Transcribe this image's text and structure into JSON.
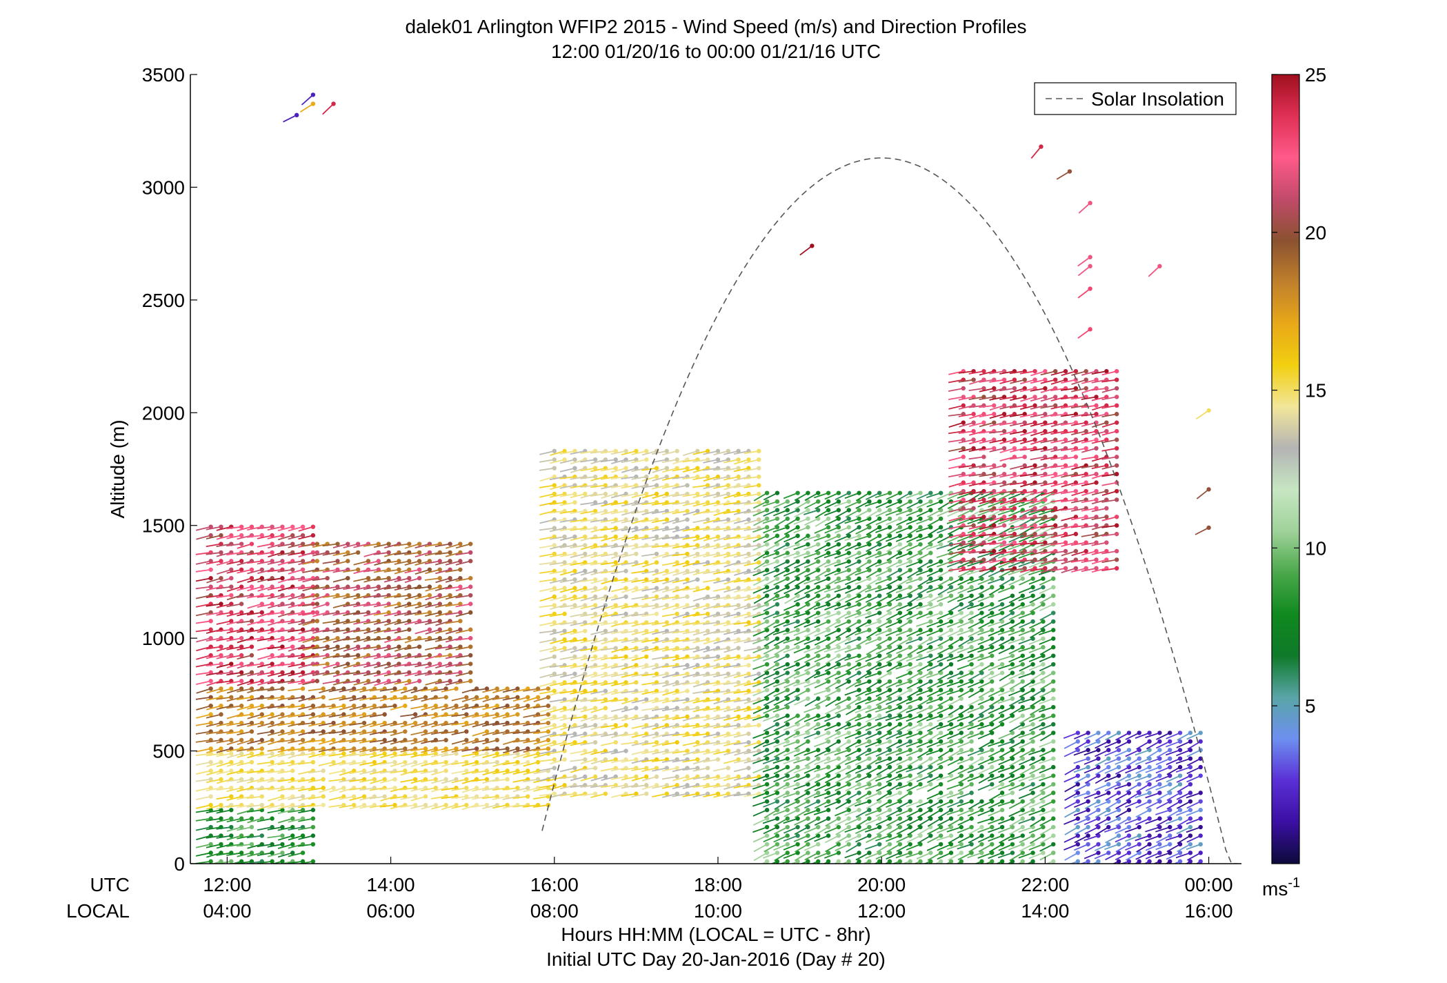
{
  "chart_data": {
    "type": "scatter",
    "title": "dalek01 Arlington WFIP2 2015 - Wind Speed (m/s) and Direction Profiles",
    "subtitle": "12:00 01/20/16 to 00:00 01/21/16  UTC",
    "ylabel": "Altitude (m)",
    "ylim": [
      0,
      3500
    ],
    "y_ticks": [
      "0",
      "500",
      "1000",
      "1500",
      "2000",
      "2500",
      "3000",
      "3500"
    ],
    "xlim_hours": [
      11.55,
      24.4
    ],
    "x_ticks_utc": [
      "12:00",
      "14:00",
      "16:00",
      "18:00",
      "20:00",
      "22:00",
      "00:00"
    ],
    "x_ticks_local": [
      "04:00",
      "06:00",
      "08:00",
      "10:00",
      "12:00",
      "14:00",
      "16:00"
    ],
    "x_row_label_utc": "UTC",
    "x_row_label_local": "LOCAL",
    "xlabel": "Hours HH:MM  (LOCAL = UTC - 8hr)",
    "xlabel2": "Initial UTC Day 20-Jan-2016 (Day # 20)",
    "legend_entry": "Solar Insolation",
    "legend_position": "top-right",
    "colorbar": {
      "range": [
        0,
        25
      ],
      "ticks": [
        "5",
        "10",
        "15",
        "20",
        "25"
      ],
      "unit": "ms",
      "unit_exp": "-1",
      "stops": [
        "#0c0a3a",
        "#3b0fa3",
        "#5a2fd6",
        "#6d8ff0",
        "#5aa5a8",
        "#0f7a2a",
        "#10891f",
        "#4aa84a",
        "#9fd29a",
        "#c6e6c2",
        "#b4b4b4",
        "#f2e69a",
        "#f2cf10",
        "#e8a818",
        "#c0802c",
        "#8a5230",
        "#c14a6a",
        "#ff5a8a",
        "#e03055",
        "#a0101e"
      ]
    },
    "solar_insolation_curve": {
      "start_hour": 15.85,
      "peak_hour": 20.0,
      "end_hour": 24.35,
      "peak_altitude_m": 3130
    },
    "barbs": {
      "summary": "Wind speed (color) and direction (line) profiles from ~0 to ~2200 m with sparse upper points to ~3400 m",
      "regimes": [
        {
          "t": [
            11.8,
            13.1
          ],
          "z": [
            0,
            250
          ],
          "speed": [
            6,
            10
          ]
        },
        {
          "t": [
            11.8,
            16.0
          ],
          "z": [
            250,
            500
          ],
          "speed": [
            14,
            16
          ]
        },
        {
          "t": [
            11.8,
            16.0
          ],
          "z": [
            500,
            800
          ],
          "speed": [
            17,
            20
          ]
        },
        {
          "t": [
            11.8,
            13.1
          ],
          "z": [
            800,
            1500
          ],
          "speed": [
            20,
            25
          ]
        },
        {
          "t": [
            13.1,
            15.0
          ],
          "z": [
            800,
            1450
          ],
          "speed": [
            18,
            22
          ]
        },
        {
          "t": [
            16.0,
            18.6
          ],
          "z": [
            300,
            1850
          ],
          "speed": [
            13,
            16
          ]
        },
        {
          "t": [
            18.6,
            22.2
          ],
          "z": [
            0,
            1650
          ],
          "speed": [
            6,
            11
          ]
        },
        {
          "t": [
            21.0,
            22.9
          ],
          "z": [
            1300,
            2200
          ],
          "speed": [
            20,
            25
          ]
        },
        {
          "t": [
            22.4,
            24.0
          ],
          "z": [
            0,
            600
          ],
          "speed": [
            1,
            5
          ]
        }
      ],
      "upper_points": [
        {
          "t": 12.85,
          "z": 3320,
          "speed": 2
        },
        {
          "t": 13.05,
          "z": 3410,
          "speed": 2
        },
        {
          "t": 13.05,
          "z": 3370,
          "speed": 17
        },
        {
          "t": 13.3,
          "z": 3370,
          "speed": 24
        },
        {
          "t": 19.15,
          "z": 2740,
          "speed": 25
        },
        {
          "t": 21.95,
          "z": 3180,
          "speed": 24
        },
        {
          "t": 22.3,
          "z": 3070,
          "speed": 20
        },
        {
          "t": 22.55,
          "z": 2930,
          "speed": 22
        },
        {
          "t": 22.55,
          "z": 2690,
          "speed": 22
        },
        {
          "t": 22.55,
          "z": 2550,
          "speed": 23
        },
        {
          "t": 22.55,
          "z": 2370,
          "speed": 23
        },
        {
          "t": 22.55,
          "z": 2650,
          "speed": 22
        },
        {
          "t": 23.4,
          "z": 2650,
          "speed": 22
        },
        {
          "t": 24.0,
          "z": 2010,
          "speed": 15
        },
        {
          "t": 24.0,
          "z": 1660,
          "speed": 20
        },
        {
          "t": 24.0,
          "z": 1490,
          "speed": 20
        }
      ]
    }
  }
}
